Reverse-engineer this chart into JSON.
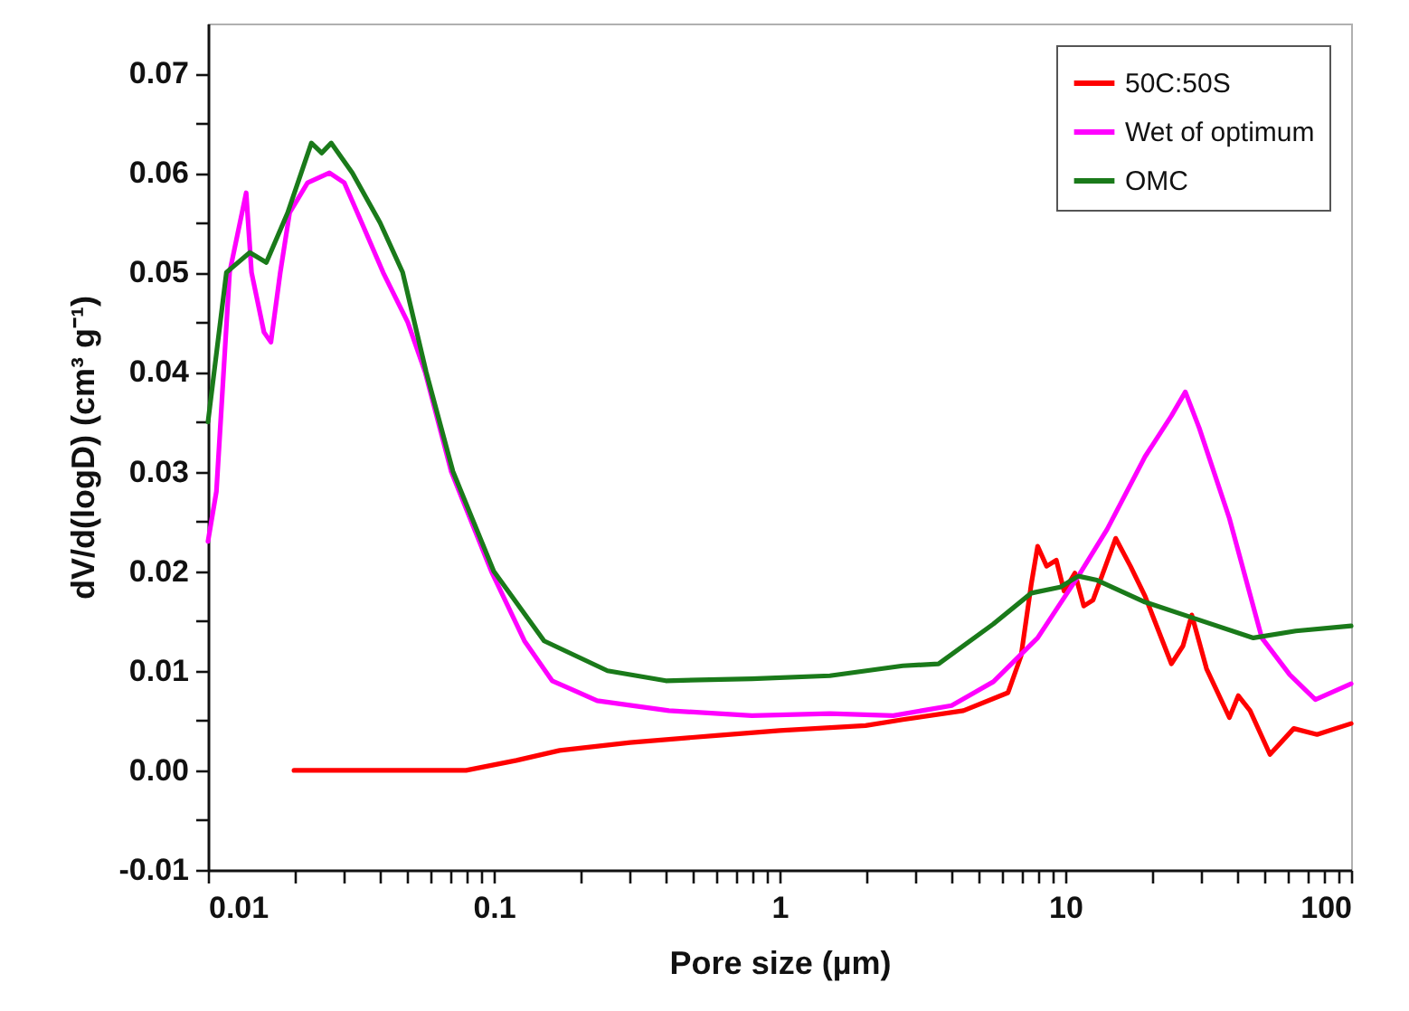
{
  "chart_data": {
    "type": "line",
    "xlabel": "Pore size (µm)",
    "ylabel": "dV/d(logD) (cm³ g⁻¹)",
    "log": "x",
    "grid": false,
    "legend": "top right",
    "marker": "none",
    "line_style": "solid",
    "xlim": [
      0.01,
      100
    ],
    "ylim": [
      -0.01,
      0.075
    ],
    "xticks": [
      0.01,
      {
        "value": 0.02,
        "label": null
      },
      {
        "value": 0.03,
        "label": null
      },
      {
        "value": 0.04,
        "label": null
      },
      {
        "value": 0.05,
        "label": null
      },
      {
        "value": 0.06,
        "label": null
      },
      {
        "value": 0.07,
        "label": null
      },
      {
        "value": 0.08,
        "label": null
      },
      {
        "value": 0.09,
        "label": null
      },
      0.1,
      {
        "value": 0.2,
        "label": null
      },
      {
        "value": 0.3,
        "label": null
      },
      {
        "value": 0.4,
        "label": null
      },
      {
        "value": 0.5,
        "label": null
      },
      {
        "value": 0.6,
        "label": null
      },
      {
        "value": 0.7,
        "label": null
      },
      {
        "value": 0.8,
        "label": null
      },
      {
        "value": 0.9,
        "label": null
      },
      1,
      {
        "value": 2,
        "label": null
      },
      {
        "value": 3,
        "label": null
      },
      {
        "value": 4,
        "label": null
      },
      {
        "value": 5,
        "label": null
      },
      {
        "value": 6,
        "label": null
      },
      {
        "value": 7,
        "label": null
      },
      {
        "value": 8,
        "label": null
      },
      {
        "value": 9,
        "label": null
      },
      10,
      {
        "value": 20,
        "label": null
      },
      {
        "value": 30,
        "label": null
      },
      {
        "value": 40,
        "label": null
      },
      {
        "value": 50,
        "label": null
      },
      {
        "value": 60,
        "label": null
      },
      {
        "value": 70,
        "label": null
      },
      {
        "value": 80,
        "label": null
      },
      {
        "value": 90,
        "label": null
      },
      100
    ],
    "yticks": [
      {
        "value": -0.01,
        "label": "-0.01"
      },
      {
        "value": -0.005,
        "label": null
      },
      {
        "value": 0,
        "label": "0.00"
      },
      {
        "value": 0.005,
        "label": null
      },
      {
        "value": 0.01,
        "label": "0.01"
      },
      {
        "value": 0.015,
        "label": null
      },
      {
        "value": 0.02,
        "label": "0.02"
      },
      {
        "value": 0.025,
        "label": null
      },
      {
        "value": 0.03,
        "label": "0.03"
      },
      {
        "value": 0.035,
        "label": null
      },
      {
        "value": 0.04,
        "label": "0.04"
      },
      {
        "value": 0.045,
        "label": null
      },
      {
        "value": 0.05,
        "label": "0.05"
      },
      {
        "value": 0.055,
        "label": null
      },
      {
        "value": 0.06,
        "label": "0.06"
      },
      {
        "value": 0.065,
        "label": null
      },
      {
        "value": 0.07,
        "label": "0.07"
      }
    ],
    "series": [
      {
        "name": "50C:50S",
        "color": "#ff0000",
        "x": [
          0.02,
          0.05,
          0.08,
          0.12,
          0.17,
          0.3,
          0.6,
          1,
          2,
          2.7,
          4.4,
          6.3,
          7.0,
          7.6,
          8.0,
          8.6,
          9.3,
          9.9,
          10.8,
          11.6,
          12.5,
          15.0,
          16.9,
          19,
          23.5,
          25.8,
          27.7,
          31.2,
          37.5,
          40.3,
          44.3,
          52,
          63,
          76,
          100
        ],
        "values": [
          0,
          0,
          0,
          0.001,
          0.002,
          0.0028,
          0.0035,
          0.004,
          0.0045,
          0.0051,
          0.006,
          0.0078,
          0.0115,
          0.0187,
          0.0225,
          0.0205,
          0.0211,
          0.018,
          0.0198,
          0.0165,
          0.0171,
          0.0233,
          0.0205,
          0.0175,
          0.0107,
          0.0125,
          0.0156,
          0.0102,
          0.0053,
          0.0075,
          0.006,
          0.0016,
          0.0042,
          0.0036,
          0.0047
        ]
      },
      {
        "name": "Wet of optimum",
        "color": "#ff00ff",
        "x": [
          0.01,
          0.0107,
          0.0119,
          0.0136,
          0.0142,
          0.0157,
          0.0166,
          0.0179,
          0.0193,
          0.0223,
          0.0266,
          0.03,
          0.0345,
          0.041,
          0.05,
          0.0575,
          0.071,
          0.098,
          0.128,
          0.16,
          0.23,
          0.41,
          0.8,
          1.5,
          2.5,
          4,
          5.6,
          8.0,
          11.1,
          14,
          19,
          23.5,
          26.3,
          29.4,
          37.5,
          48.7,
          61,
          75,
          100
        ],
        "values": [
          0.023,
          0.028,
          0.05,
          0.058,
          0.05,
          0.044,
          0.043,
          0.05,
          0.056,
          0.059,
          0.06,
          0.059,
          0.055,
          0.05,
          0.045,
          0.04,
          0.03,
          0.02,
          0.013,
          0.009,
          0.007,
          0.006,
          0.0055,
          0.0057,
          0.0055,
          0.0065,
          0.0089,
          0.0133,
          0.0195,
          0.0242,
          0.0315,
          0.0356,
          0.038,
          0.0344,
          0.0253,
          0.0133,
          0.0096,
          0.0071,
          0.0087
        ]
      },
      {
        "name": "OMC",
        "color": "#1a7a1a",
        "x": [
          0.01,
          0.0116,
          0.014,
          0.016,
          0.019,
          0.023,
          0.025,
          0.027,
          0.032,
          0.04,
          0.048,
          0.058,
          0.072,
          0.1,
          0.15,
          0.25,
          0.4,
          0.8,
          1.5,
          2.7,
          3.6,
          5.6,
          7.6,
          9.6,
          11.1,
          12.9,
          19,
          28,
          45.5,
          64,
          100
        ],
        "values": [
          0.035,
          0.05,
          0.052,
          0.051,
          0.056,
          0.063,
          0.062,
          0.063,
          0.06,
          0.055,
          0.05,
          0.04,
          0.03,
          0.02,
          0.013,
          0.01,
          0.009,
          0.0092,
          0.0095,
          0.0105,
          0.0107,
          0.0147,
          0.0178,
          0.0184,
          0.0195,
          0.0191,
          0.0169,
          0.0153,
          0.0133,
          0.014,
          0.0145
        ]
      }
    ]
  }
}
